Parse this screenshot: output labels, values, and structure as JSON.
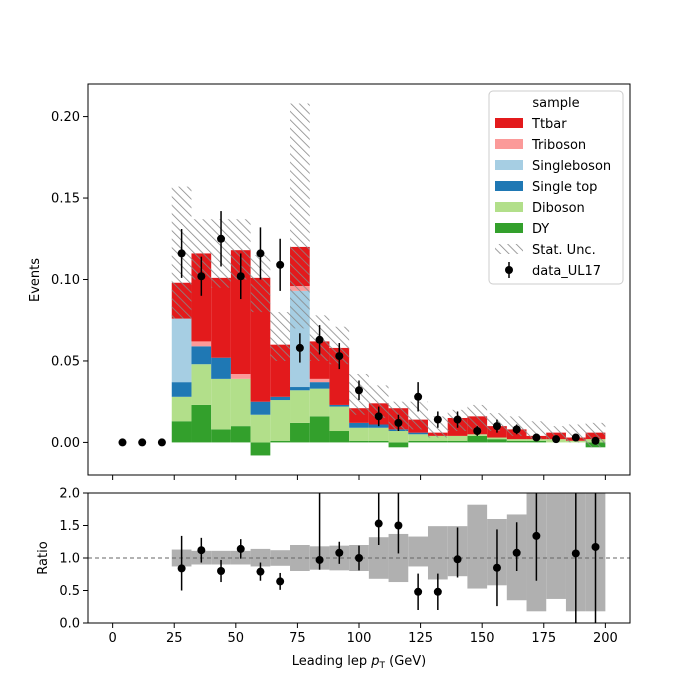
{
  "chart_data": [
    {
      "type": "bar",
      "subtype": "stacked-step-histogram",
      "panel": "main",
      "xlabel": "",
      "ylabel": "Events",
      "xlim": [
        -10,
        210
      ],
      "ylim": [
        -0.02,
        0.22
      ],
      "yticks": [
        0.0,
        0.05,
        0.1,
        0.15,
        0.2
      ],
      "ytick_labels": [
        "0.00",
        "0.05",
        "0.10",
        "0.15",
        "0.20"
      ],
      "xticks": [
        0,
        25,
        50,
        75,
        100,
        125,
        150,
        175,
        200
      ],
      "bin_edges": [
        24,
        32,
        40,
        48,
        56,
        64,
        72,
        80,
        88,
        96,
        104,
        112,
        120,
        128,
        136,
        144,
        152,
        160,
        168,
        176,
        184,
        192,
        200
      ],
      "legend_title": "sample",
      "legend_position": "top-right",
      "series": [
        {
          "name": "DY",
          "color": "#33a02c",
          "values": [
            0.013,
            0.023,
            0.008,
            0.01,
            -0.008,
            0.001,
            0.012,
            0.016,
            0.007,
            0.001,
            0.001,
            -0.003,
            0.001,
            0.001,
            0.001,
            0.004,
            0.002,
            0.001,
            0.001,
            0.0,
            0.0,
            -0.003
          ]
        },
        {
          "name": "Diboson",
          "color": "#b2df8a",
          "values": [
            0.015,
            0.025,
            0.031,
            0.029,
            0.017,
            0.025,
            0.02,
            0.017,
            0.015,
            0.008,
            0.008,
            0.007,
            0.004,
            0.003,
            0.003,
            0.001,
            0.001,
            0.001,
            0.001,
            0.002,
            0.001,
            0.002
          ]
        },
        {
          "name": "Single top",
          "color": "#1f78b4",
          "values": [
            0.009,
            0.011,
            0.013,
            0.0,
            0.008,
            0.002,
            0.002,
            0.004,
            0.001,
            0.003,
            0.002,
            0.001,
            0.001,
            0.0,
            0.0,
            0.0,
            0.0,
            0.0,
            0.0,
            0.0,
            0.0,
            0.0
          ]
        },
        {
          "name": "Singleboson",
          "color": "#a6cee3",
          "values": [
            0.039,
            0.0,
            0.0,
            0.0,
            0.0,
            0.0,
            0.059,
            0.0,
            0.0,
            0.0,
            0.0,
            0.0,
            0.0,
            0.0,
            0.0,
            0.0,
            0.0,
            0.0,
            0.0,
            0.0,
            0.0,
            0.0
          ]
        },
        {
          "name": "Triboson",
          "color": "#fb9a99",
          "values": [
            0.0,
            0.003,
            0.0,
            0.003,
            0.0,
            0.0,
            0.003,
            0.002,
            0.0,
            0.0,
            0.0,
            0.0,
            0.0,
            0.0,
            0.0,
            0.0,
            0.0,
            0.0,
            0.0,
            0.0,
            0.0,
            0.0
          ]
        },
        {
          "name": "Ttbar",
          "color": "#e31a1c",
          "values": [
            0.022,
            0.054,
            0.049,
            0.076,
            0.076,
            0.032,
            0.024,
            0.023,
            0.035,
            0.009,
            0.013,
            0.013,
            0.008,
            0.002,
            0.011,
            0.011,
            0.007,
            0.006,
            0.002,
            0.004,
            0.002,
            0.004
          ]
        }
      ],
      "stat_unc": {
        "name": "Stat. Unc.",
        "low": [
          0.076,
          0.1,
          0.095,
          0.1,
          0.08,
          0.05,
          0.07,
          0.05,
          0.048,
          0.017,
          0.015,
          0.007,
          0.008,
          0.003,
          0.007,
          0.008,
          0.007,
          0.004,
          0.002,
          0.002,
          0.0,
          -0.003
        ],
        "high": [
          0.157,
          0.137,
          0.137,
          0.137,
          0.115,
          0.08,
          0.208,
          0.078,
          0.071,
          0.042,
          0.035,
          0.025,
          0.025,
          0.016,
          0.02,
          0.023,
          0.018,
          0.016,
          0.013,
          0.01,
          0.011,
          0.012
        ]
      },
      "data_points": {
        "name": "data_UL17",
        "x": [
          4,
          12,
          20,
          28,
          36,
          44,
          52,
          60,
          68,
          76,
          84,
          92,
          100,
          108,
          116,
          124,
          132,
          140,
          148,
          156,
          164,
          172,
          180,
          188,
          196
        ],
        "y": [
          0.0,
          0.0,
          0.0,
          0.116,
          0.102,
          0.125,
          0.102,
          0.116,
          0.109,
          0.058,
          0.063,
          0.053,
          0.032,
          0.016,
          0.012,
          0.028,
          0.014,
          0.014,
          0.007,
          0.01,
          0.008,
          0.003,
          0.002,
          0.003,
          0.001
        ],
        "yerr": [
          0.0,
          0.0,
          0.0,
          0.015,
          0.012,
          0.017,
          0.014,
          0.016,
          0.016,
          0.009,
          0.009,
          0.008,
          0.006,
          0.006,
          0.005,
          0.009,
          0.005,
          0.005,
          0.003,
          0.004,
          0.003,
          0.002,
          0.001,
          0.002,
          0.001
        ]
      }
    },
    {
      "type": "scatter",
      "subtype": "ratio-panel",
      "panel": "ratio",
      "xlabel": "Leading lep p_T (GeV)",
      "ylabel": "Ratio",
      "xlim": [
        -10,
        210
      ],
      "ylim": [
        0.0,
        2.0
      ],
      "yticks": [
        0.0,
        0.5,
        1.0,
        1.5,
        2.0
      ],
      "ytick_labels": [
        "0.0",
        "0.5",
        "1.0",
        "1.5",
        "2.0"
      ],
      "xticks": [
        0,
        25,
        50,
        75,
        100,
        125,
        150,
        175,
        200
      ],
      "xtick_labels": [
        "0",
        "25",
        "50",
        "75",
        "100",
        "125",
        "150",
        "175",
        "200"
      ],
      "reference_line": 1.0,
      "unc_band": {
        "low": [
          0.87,
          0.9,
          0.9,
          0.9,
          0.87,
          0.88,
          0.8,
          0.82,
          0.81,
          0.8,
          0.68,
          0.63,
          0.87,
          0.67,
          0.72,
          0.53,
          0.58,
          0.35,
          0.18,
          0.37,
          0.18,
          0.18
        ],
        "high": [
          1.13,
          1.11,
          1.11,
          1.11,
          1.14,
          1.12,
          1.2,
          1.18,
          1.19,
          1.2,
          1.32,
          1.37,
          1.33,
          1.49,
          1.49,
          1.82,
          1.6,
          1.67,
          2.0,
          2.0,
          2.0,
          2.0
        ]
      },
      "points": {
        "x": [
          28,
          36,
          44,
          52,
          60,
          68,
          84,
          92,
          100,
          108,
          116,
          124,
          132,
          140,
          156,
          164,
          172,
          188,
          196
        ],
        "y": [
          0.84,
          1.12,
          0.8,
          1.14,
          0.79,
          0.64,
          0.97,
          1.08,
          1.0,
          1.53,
          1.5,
          0.48,
          0.48,
          0.98,
          0.85,
          1.08,
          1.34,
          1.07,
          1.17
        ],
        "err_low": [
          0.34,
          0.19,
          0.17,
          0.15,
          0.14,
          0.13,
          0.15,
          0.17,
          0.19,
          0.33,
          0.43,
          0.28,
          0.28,
          0.28,
          0.59,
          0.28,
          0.69,
          1.07,
          1.17
        ],
        "err_high": [
          0.5,
          0.19,
          0.17,
          0.15,
          0.14,
          0.13,
          1.03,
          0.17,
          0.19,
          0.47,
          0.5,
          0.28,
          0.28,
          0.49,
          0.59,
          0.47,
          0.69,
          0.93,
          0.83
        ]
      }
    }
  ],
  "xlabel_parts": {
    "main": "Leading lep ",
    "italic": "p",
    "sub": "T",
    "unit": " (GeV)"
  }
}
